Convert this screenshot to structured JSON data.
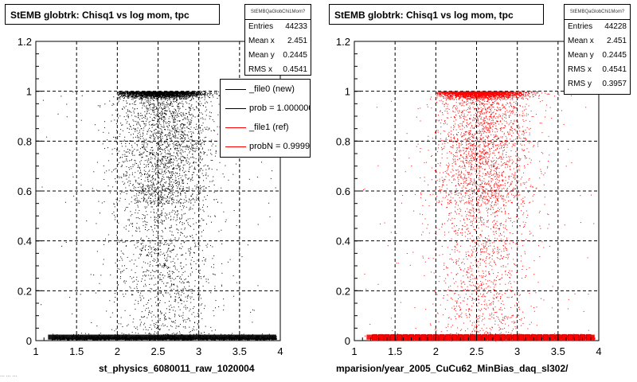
{
  "panels": [
    {
      "title": "StEMB globtrk: Chisq1 vs log mom, tpc",
      "stats": {
        "name": "StEMBQaGlobChi1Mom?",
        "rows": [
          {
            "label": "Entries",
            "value": "44233"
          },
          {
            "label": "Mean x",
            "value": "2.451"
          },
          {
            "label": "Mean y",
            "value": "0.2445"
          },
          {
            "label": "RMS x",
            "value": "0.4541"
          }
        ]
      },
      "legend": [
        {
          "label": "_file0 (new)",
          "color": "#000000"
        },
        {
          "label": "prob = 1.000000",
          "color": "#000000"
        },
        {
          "label": "_file1 (ref)",
          "color": "#ff0000"
        },
        {
          "label": "probN = 0.999910",
          "color": "#ff0000"
        }
      ],
      "xlabel": "st_physics_6080011_raw_1020004",
      "marker_color": "#000000"
    },
    {
      "title": "StEMB globtrk: Chisq1 vs log mom, tpc",
      "stats": {
        "name": "StEMBQaGlobChi1Mom?",
        "rows": [
          {
            "label": "Entries",
            "value": "44228"
          },
          {
            "label": "Mean x",
            "value": "2.451"
          },
          {
            "label": "Mean y",
            "value": "0.2445"
          },
          {
            "label": "RMS x",
            "value": "0.4541"
          },
          {
            "label": "RMS y",
            "value": "0.3957"
          }
        ]
      },
      "xlabel": "mparision/year_2005_CuCu62_MinBias_daq_sl302/",
      "marker_color": "#ff0000"
    }
  ],
  "footer": "... ... ...",
  "chart_data": [
    {
      "type": "scatter",
      "title": "StEMB globtrk: Chisq1 vs log mom, tpc",
      "xlim": [
        1,
        4
      ],
      "ylim": [
        0,
        1.2
      ],
      "xticks": [
        "1",
        "1.5",
        "2",
        "2.5",
        "3",
        "3.5",
        "4"
      ],
      "yticks": [
        "0",
        "0.2",
        "0.4",
        "0.6",
        "0.8",
        "1",
        "1.2"
      ],
      "grid": true,
      "series": [
        {
          "name": "_file0 (new)",
          "color": "#000000",
          "density_x_profile": [
            [
              1.1,
              0.02
            ],
            [
              1.5,
              0.05
            ],
            [
              2.0,
              0.25
            ],
            [
              2.3,
              0.8
            ],
            [
              2.5,
              1.0
            ],
            [
              2.8,
              0.85
            ],
            [
              3.0,
              0.6
            ],
            [
              3.3,
              0.3
            ],
            [
              3.6,
              0.1
            ],
            [
              4.0,
              0.02
            ]
          ],
          "bands": [
            {
              "y": 1.0,
              "weight": 0.25
            },
            {
              "y": 0.01,
              "weight": 0.25
            }
          ]
        }
      ],
      "entries": 44233,
      "mean_x": 2.451,
      "mean_y": 0.2445,
      "rms_x": 0.4541
    },
    {
      "type": "scatter",
      "title": "StEMB globtrk: Chisq1 vs log mom, tpc",
      "xlim": [
        1,
        4
      ],
      "ylim": [
        0,
        1.2
      ],
      "xticks": [
        "1",
        "1.5",
        "2",
        "2.5",
        "3",
        "3.5",
        "4"
      ],
      "yticks": [
        "0",
        "0.2",
        "0.4",
        "0.6",
        "0.8",
        "1",
        "1.2"
      ],
      "grid": true,
      "series": [
        {
          "name": "_file1 (ref)",
          "color": "#ff0000",
          "density_x_profile": [
            [
              1.1,
              0.02
            ],
            [
              1.5,
              0.05
            ],
            [
              2.0,
              0.25
            ],
            [
              2.3,
              0.8
            ],
            [
              2.5,
              1.0
            ],
            [
              2.8,
              0.85
            ],
            [
              3.0,
              0.6
            ],
            [
              3.3,
              0.3
            ],
            [
              3.6,
              0.1
            ],
            [
              4.0,
              0.02
            ]
          ],
          "bands": [
            {
              "y": 1.0,
              "weight": 0.25
            },
            {
              "y": 0.01,
              "weight": 0.25
            }
          ]
        }
      ],
      "entries": 44228,
      "mean_x": 2.451,
      "mean_y": 0.2445,
      "rms_x": 0.4541,
      "rms_y": 0.3957
    }
  ]
}
